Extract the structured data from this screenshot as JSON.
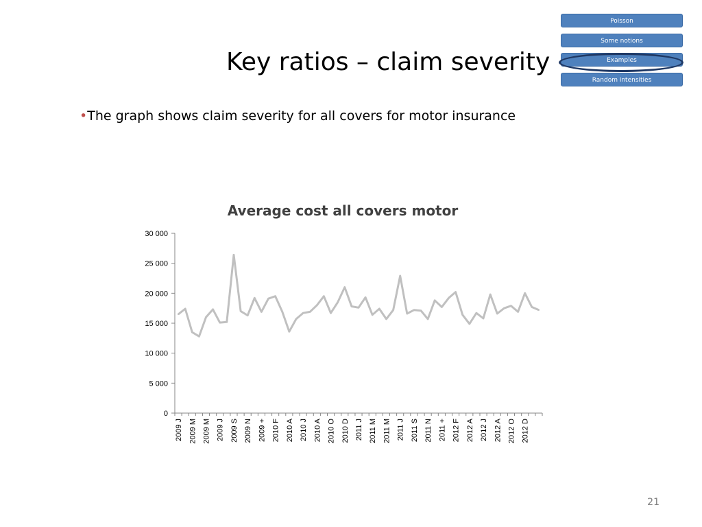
{
  "slide": {
    "title": "Key ratios – claim severity",
    "bullet_marker": "•",
    "bullet_text": "The graph shows claim severity for all covers for motor insurance",
    "page_number": "21"
  },
  "nav": [
    {
      "label": "Poisson",
      "active": false
    },
    {
      "label": "Some notions",
      "active": false
    },
    {
      "label": "Examples",
      "active": true
    },
    {
      "label": "Random intensities",
      "active": false
    }
  ],
  "colors": {
    "nav_button": "#4f81bd",
    "line": "#c0c0c0",
    "bullet": "#c0504d",
    "title_text": "#404040"
  },
  "chart_data": {
    "type": "line",
    "title": "Average cost all covers motor",
    "xlabel": "",
    "ylabel": "",
    "ylim": [
      0,
      30000
    ],
    "y_ticks": [
      0,
      5000,
      10000,
      15000,
      20000,
      25000,
      30000
    ],
    "y_tick_labels": [
      "0",
      "5 000",
      "10 000",
      "15 000",
      "20 000",
      "25 000",
      "30 000"
    ],
    "grid": false,
    "legend": "none",
    "x_tick_labels": [
      "2009 J",
      "2009 M",
      "2009 M",
      "2009 J",
      "2009 S",
      "2009 N",
      "2009 +",
      "2010 F",
      "2010 A",
      "2010 J",
      "2010 A",
      "2010 O",
      "2010 D",
      "2011 J",
      "2011 M",
      "2011 M",
      "2011 J",
      "2011 S",
      "2011 N",
      "2011 +",
      "2012 F",
      "2012 A",
      "2012 J",
      "2012 A",
      "2012 O",
      "2012 D"
    ],
    "series": [
      {
        "values": [
          16500,
          17400,
          13500,
          12800,
          16000,
          17300,
          15100,
          15200,
          26400,
          17000,
          16300,
          19200,
          16900,
          19100,
          19500,
          16900,
          13600,
          15700,
          16700,
          16900,
          18000,
          19500,
          16700,
          18500,
          21000,
          17800,
          17600,
          19300,
          16400,
          17400,
          15700,
          17200,
          22900,
          16600,
          17200,
          17100,
          15700,
          18800,
          17700,
          19200,
          20200,
          16400,
          14900,
          16700,
          15800,
          19800,
          16600,
          17500,
          17900,
          16900,
          20000,
          17700,
          17200
        ]
      }
    ]
  }
}
